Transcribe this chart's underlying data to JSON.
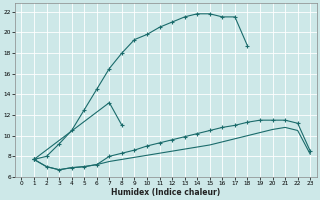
{
  "xlabel": "Humidex (Indice chaleur)",
  "bg_color": "#cde8e8",
  "grid_color": "#ffffff",
  "line_color": "#1a6b6b",
  "xlim": [
    -0.5,
    23.5
  ],
  "ylim": [
    6,
    22.8
  ],
  "xticks": [
    0,
    1,
    2,
    3,
    4,
    5,
    6,
    7,
    8,
    9,
    10,
    11,
    12,
    13,
    14,
    15,
    16,
    17,
    18,
    19,
    20,
    21,
    22,
    23
  ],
  "yticks": [
    6,
    8,
    10,
    12,
    14,
    16,
    18,
    20,
    22
  ],
  "line1_x": [
    1,
    2,
    3,
    4,
    5,
    6,
    7,
    8,
    9,
    10,
    11,
    12,
    13,
    14,
    15,
    16,
    17,
    18
  ],
  "line1_y": [
    7.7,
    8.0,
    9.2,
    10.5,
    12.5,
    14.5,
    16.5,
    18.0,
    19.3,
    19.8,
    20.5,
    21.0,
    21.5,
    21.8,
    21.8,
    21.5,
    21.5,
    18.7
  ],
  "line2_x": [
    1,
    2,
    3,
    4,
    5,
    6,
    7,
    8,
    9,
    10,
    11,
    12,
    13,
    14,
    15,
    16,
    17,
    18,
    19,
    20,
    21,
    22,
    23
  ],
  "line2_y": [
    7.7,
    7.0,
    6.7,
    6.9,
    7.0,
    7.2,
    8.0,
    8.3,
    8.6,
    9.0,
    9.3,
    9.6,
    9.9,
    10.2,
    10.5,
    10.8,
    11.0,
    11.3,
    11.5,
    11.5,
    11.5,
    11.2,
    8.5
  ],
  "line3_x": [
    1,
    2,
    3,
    4,
    5,
    6,
    7,
    8,
    9,
    10,
    11,
    12,
    13,
    14,
    15,
    16,
    17,
    18,
    19,
    20,
    21,
    22,
    23
  ],
  "line3_y": [
    7.7,
    7.0,
    6.7,
    6.9,
    7.0,
    7.2,
    7.5,
    7.7,
    7.9,
    8.1,
    8.3,
    8.5,
    8.7,
    8.9,
    9.1,
    9.4,
    9.7,
    10.0,
    10.3,
    10.6,
    10.8,
    10.5,
    8.2
  ],
  "line4_x": [
    1,
    7,
    8
  ],
  "line4_y": [
    7.7,
    13.2,
    11.0
  ]
}
